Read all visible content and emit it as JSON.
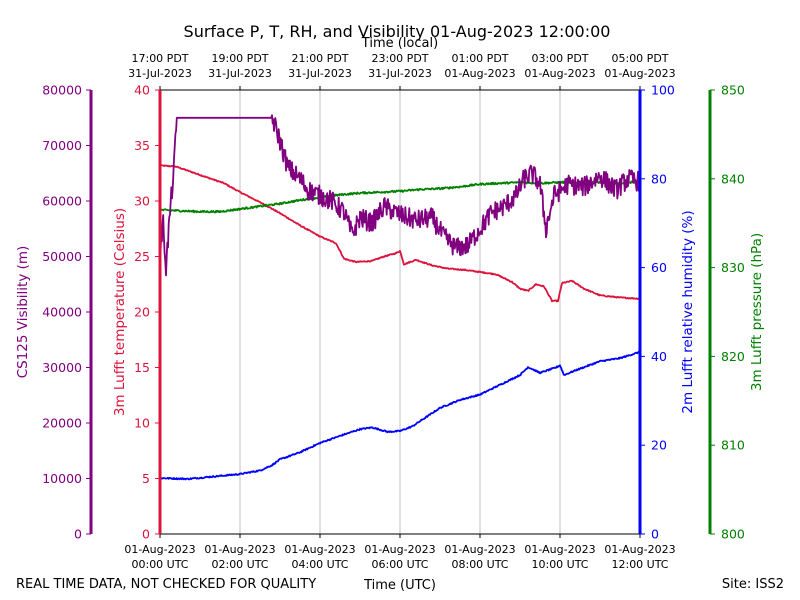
{
  "chart_data": {
    "type": "line",
    "title": "Surface P, T, RH, and Visibility 01-Aug-2023 12:00:00",
    "top_axis_label": "Time (local)",
    "xlabel": "Time (UTC)",
    "footer_left": "REAL TIME DATA, NOT CHECKED FOR QUALITY",
    "footer_right": "Site: ISS2",
    "x_range_hours": [
      0,
      12
    ],
    "x_ticks_utc": [
      {
        "h": 0,
        "l1": "01-Aug-2023",
        "l2": "00:00 UTC"
      },
      {
        "h": 2,
        "l1": "01-Aug-2023",
        "l2": "02:00 UTC"
      },
      {
        "h": 4,
        "l1": "01-Aug-2023",
        "l2": "04:00 UTC"
      },
      {
        "h": 6,
        "l1": "01-Aug-2023",
        "l2": "06:00 UTC"
      },
      {
        "h": 8,
        "l1": "01-Aug-2023",
        "l2": "08:00 UTC"
      },
      {
        "h": 10,
        "l1": "01-Aug-2023",
        "l2": "10:00 UTC"
      },
      {
        "h": 12,
        "l1": "01-Aug-2023",
        "l2": "12:00 UTC"
      }
    ],
    "x_ticks_local": [
      {
        "h": 0,
        "l1": "17:00 PDT",
        "l2": "31-Jul-2023"
      },
      {
        "h": 2,
        "l1": "19:00 PDT",
        "l2": "31-Jul-2023"
      },
      {
        "h": 4,
        "l1": "21:00 PDT",
        "l2": "31-Jul-2023"
      },
      {
        "h": 6,
        "l1": "23:00 PDT",
        "l2": "31-Jul-2023"
      },
      {
        "h": 8,
        "l1": "01:00 PDT",
        "l2": "01-Aug-2023"
      },
      {
        "h": 10,
        "l1": "03:00 PDT",
        "l2": "01-Aug-2023"
      },
      {
        "h": 12,
        "l1": "05:00 PDT",
        "l2": "01-Aug-2023"
      }
    ],
    "axes": {
      "visibility": {
        "label": "CS125 Visibility (m)",
        "color": "#800080",
        "ylim": [
          0,
          80000
        ],
        "ticks": [
          "0",
          "10000",
          "20000",
          "30000",
          "40000",
          "50000",
          "60000",
          "70000",
          "80000"
        ]
      },
      "temperature": {
        "label": "3m Lufft temperature (Celsius)",
        "color": "#dc143c",
        "ylim": [
          0,
          40
        ],
        "ticks": [
          "0",
          "5",
          "10",
          "15",
          "20",
          "25",
          "30",
          "35",
          "40"
        ]
      },
      "humidity": {
        "label": "2m Lufft relative humidity (%)",
        "color": "#0000ff",
        "ylim": [
          0,
          100
        ],
        "ticks": [
          "0",
          "20",
          "40",
          "60",
          "80",
          "100"
        ]
      },
      "pressure": {
        "label": "3m Lufft pressure (hPa)",
        "color": "#008000",
        "ylim": [
          800,
          850
        ],
        "ticks": [
          "800",
          "810",
          "820",
          "830",
          "840",
          "850"
        ]
      }
    },
    "series": [
      {
        "name": "temperature",
        "axis": "temperature",
        "color": "#dc143c",
        "noise": 0.05,
        "points": [
          [
            0,
            33.2
          ],
          [
            0.4,
            33.1
          ],
          [
            0.8,
            32.6
          ],
          [
            1.2,
            32.1
          ],
          [
            1.6,
            31.6
          ],
          [
            2.0,
            30.8
          ],
          [
            2.6,
            29.7
          ],
          [
            3.0,
            28.9
          ],
          [
            3.5,
            27.8
          ],
          [
            4.0,
            26.8
          ],
          [
            4.4,
            26.2
          ],
          [
            4.6,
            24.8
          ],
          [
            4.9,
            24.5
          ],
          [
            5.3,
            24.6
          ],
          [
            5.6,
            25.0
          ],
          [
            5.9,
            25.3
          ],
          [
            6.0,
            25.5
          ],
          [
            6.1,
            24.3
          ],
          [
            6.4,
            24.7
          ],
          [
            6.8,
            24.2
          ],
          [
            7.2,
            23.9
          ],
          [
            7.6,
            23.8
          ],
          [
            8.0,
            23.6
          ],
          [
            8.4,
            23.4
          ],
          [
            8.8,
            22.7
          ],
          [
            9.0,
            22.1
          ],
          [
            9.2,
            21.9
          ],
          [
            9.4,
            22.5
          ],
          [
            9.6,
            22.3
          ],
          [
            9.8,
            21.0
          ],
          [
            9.95,
            21.0
          ],
          [
            10.05,
            22.6
          ],
          [
            10.3,
            22.8
          ],
          [
            10.6,
            22.1
          ],
          [
            11.0,
            21.5
          ],
          [
            11.5,
            21.3
          ],
          [
            12.0,
            21.2
          ]
        ]
      },
      {
        "name": "humidity",
        "axis": "humidity",
        "color": "#0000ff",
        "noise": 0.15,
        "points": [
          [
            0,
            12.6
          ],
          [
            0.7,
            12.4
          ],
          [
            1.4,
            13.0
          ],
          [
            2.0,
            13.5
          ],
          [
            2.5,
            14.3
          ],
          [
            2.8,
            15.5
          ],
          [
            3.0,
            16.8
          ],
          [
            3.5,
            18.4
          ],
          [
            4.0,
            20.5
          ],
          [
            4.5,
            22.1
          ],
          [
            5.0,
            23.6
          ],
          [
            5.3,
            24.0
          ],
          [
            5.7,
            23.0
          ],
          [
            6.0,
            23.2
          ],
          [
            6.3,
            24.2
          ],
          [
            6.7,
            26.6
          ],
          [
            7.0,
            28.4
          ],
          [
            7.5,
            30.2
          ],
          [
            8.0,
            31.4
          ],
          [
            8.5,
            33.6
          ],
          [
            9.0,
            35.8
          ],
          [
            9.2,
            37.6
          ],
          [
            9.5,
            36.3
          ],
          [
            9.9,
            37.5
          ],
          [
            10.0,
            38.0
          ],
          [
            10.1,
            35.8
          ],
          [
            10.4,
            36.9
          ],
          [
            11.0,
            38.9
          ],
          [
            11.5,
            39.6
          ],
          [
            12.0,
            41.0
          ]
        ]
      },
      {
        "name": "pressure",
        "axis": "pressure",
        "color": "#008000",
        "noise": 0.1,
        "points": [
          [
            0,
            836.5
          ],
          [
            0.5,
            836.4
          ],
          [
            1.0,
            836.3
          ],
          [
            1.5,
            836.3
          ],
          [
            2.0,
            836.6
          ],
          [
            2.5,
            836.9
          ],
          [
            3.0,
            837.2
          ],
          [
            3.5,
            837.6
          ],
          [
            4.0,
            837.9
          ],
          [
            4.5,
            838.2
          ],
          [
            5.0,
            838.4
          ],
          [
            5.5,
            838.5
          ],
          [
            6.0,
            838.6
          ],
          [
            6.5,
            838.8
          ],
          [
            7.0,
            838.9
          ],
          [
            7.5,
            839.1
          ],
          [
            8.0,
            839.4
          ],
          [
            8.5,
            839.5
          ],
          [
            9.0,
            839.6
          ],
          [
            9.5,
            839.5
          ],
          [
            10.0,
            839.6
          ],
          [
            10.5,
            839.6
          ],
          [
            11.0,
            839.6
          ],
          [
            11.5,
            839.5
          ],
          [
            12.0,
            839.7
          ]
        ]
      },
      {
        "name": "visibility",
        "axis": "visibility",
        "color": "#800080",
        "noise": 1800,
        "points": [
          [
            0,
            51000
          ],
          [
            0.08,
            56000
          ],
          [
            0.15,
            48000
          ],
          [
            0.25,
            58000
          ],
          [
            0.35,
            66000
          ],
          [
            0.42,
            75000
          ],
          [
            2.8,
            75000
          ],
          [
            2.95,
            72000
          ],
          [
            3.2,
            66000
          ],
          [
            3.5,
            64000
          ],
          [
            3.7,
            62000
          ],
          [
            4.0,
            61000
          ],
          [
            4.3,
            60000
          ],
          [
            4.6,
            58000
          ],
          [
            4.8,
            54000
          ],
          [
            5.0,
            57000
          ],
          [
            5.3,
            56000
          ],
          [
            5.6,
            59000
          ],
          [
            6.0,
            57500
          ],
          [
            6.4,
            56500
          ],
          [
            6.8,
            57000
          ],
          [
            7.1,
            53500
          ],
          [
            7.4,
            51500
          ],
          [
            7.7,
            52000
          ],
          [
            8.0,
            55000
          ],
          [
            8.3,
            58000
          ],
          [
            8.6,
            59000
          ],
          [
            8.9,
            61000
          ],
          [
            9.1,
            64000
          ],
          [
            9.3,
            65000
          ],
          [
            9.5,
            63000
          ],
          [
            9.65,
            55000
          ],
          [
            9.85,
            61000
          ],
          [
            10.2,
            63000
          ],
          [
            10.6,
            62500
          ],
          [
            11.0,
            64500
          ],
          [
            11.4,
            62000
          ],
          [
            11.7,
            64000
          ],
          [
            12.0,
            63500
          ]
        ]
      }
    ]
  }
}
